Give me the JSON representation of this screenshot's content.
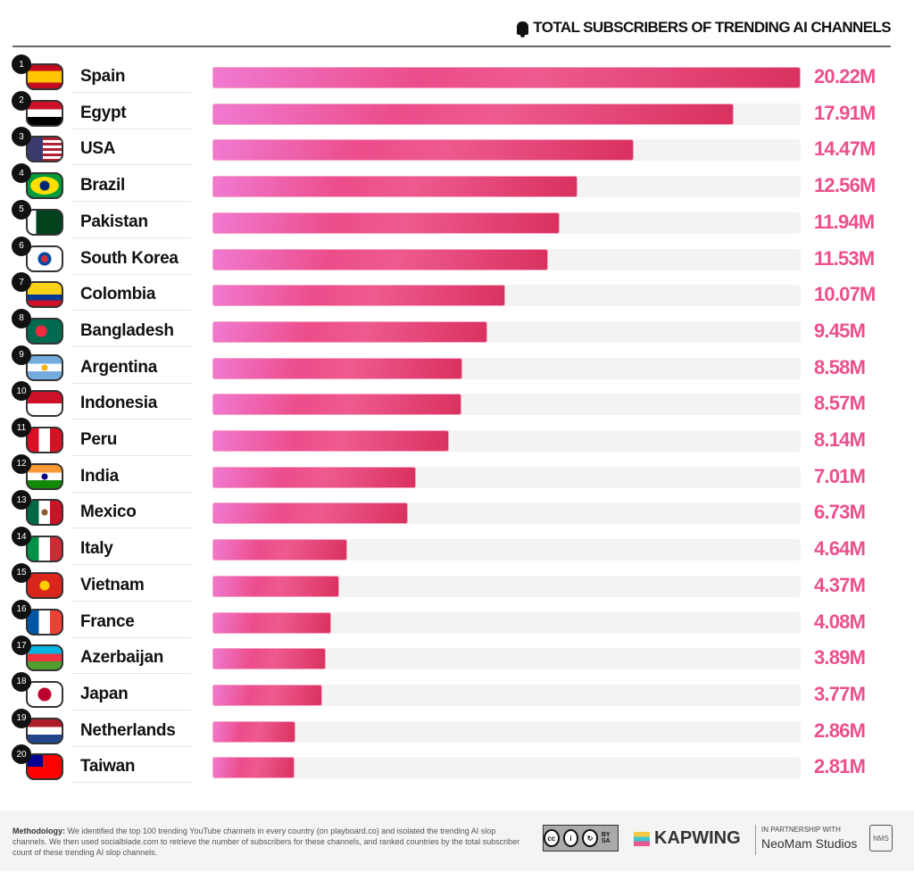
{
  "chart_data": {
    "type": "bar",
    "orientation": "horizontal",
    "title": "TOTAL SUBSCRIBERS OF TRENDING AI CHANNELS",
    "unit": "M",
    "xlim": [
      0,
      20.22
    ],
    "categories": [
      "Spain",
      "Egypt",
      "USA",
      "Brazil",
      "Pakistan",
      "South Korea",
      "Colombia",
      "Bangladesh",
      "Argentina",
      "Indonesia",
      "Peru",
      "India",
      "Mexico",
      "Italy",
      "Vietnam",
      "France",
      "Azerbaijan",
      "Japan",
      "Netherlands",
      "Taiwan"
    ],
    "values": [
      20.22,
      17.91,
      14.47,
      12.56,
      11.94,
      11.53,
      10.07,
      9.45,
      8.58,
      8.57,
      8.14,
      7.01,
      6.73,
      4.64,
      4.37,
      4.08,
      3.89,
      3.77,
      2.86,
      2.81
    ],
    "labels": [
      "20.22M",
      "17.91M",
      "14.47M",
      "12.56M",
      "11.94M",
      "11.53M",
      "10.07M",
      "9.45M",
      "8.58M",
      "8.57M",
      "8.14M",
      "7.01M",
      "6.73M",
      "4.64M",
      "4.37M",
      "4.08M",
      "3.89M",
      "3.77M",
      "2.86M",
      "2.81M"
    ],
    "ranks": [
      "1",
      "2",
      "3",
      "4",
      "5",
      "6",
      "7",
      "8",
      "9",
      "10",
      "11",
      "12",
      "13",
      "14",
      "15",
      "16",
      "17",
      "18",
      "19",
      "20"
    ],
    "bar_color": "#ec4d8a"
  },
  "footer": {
    "methodology_label": "Methodology:",
    "methodology_text": " We identified the top 100 trending YouTube channels in every country (on playboard.co) and isolated the trending AI slop channels. We then used socialblade.com to retrieve the number of subscribers for these channels, and ranked countries by the total subscriber count of these trending AI slop channels.",
    "license": "BY SA",
    "brand": "KAPWING",
    "partner_label": "IN PARTNERSHIP WITH",
    "partner": "NeoMam Studios"
  }
}
